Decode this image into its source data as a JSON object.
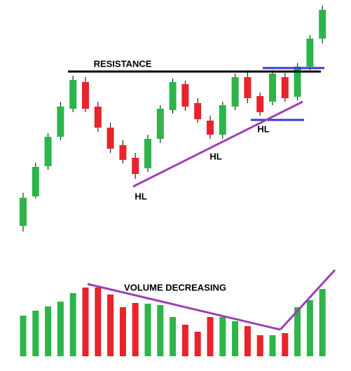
{
  "chart_data": {
    "type": "candlestick",
    "ylim": [
      0,
      530
    ],
    "up_color": "#2db44a",
    "down_color": "#e8232b",
    "open": [
      208,
      250,
      293,
      335,
      375,
      413,
      378,
      348,
      323,
      305,
      290,
      332,
      373,
      410,
      383,
      358,
      338,
      378,
      420,
      393,
      385,
      420,
      392,
      435,
      475
    ],
    "high": [
      255,
      298,
      340,
      385,
      422,
      420,
      385,
      355,
      330,
      312,
      338,
      380,
      418,
      415,
      390,
      365,
      385,
      425,
      427,
      398,
      430,
      426,
      440,
      480,
      522
    ],
    "low": [
      200,
      247,
      288,
      330,
      370,
      370,
      342,
      312,
      297,
      275,
      285,
      326,
      368,
      372,
      355,
      332,
      332,
      373,
      383,
      365,
      380,
      385,
      387,
      430,
      468
    ],
    "close": [
      248,
      292,
      335,
      378,
      416,
      375,
      348,
      318,
      302,
      282,
      332,
      375,
      413,
      378,
      360,
      338,
      380,
      420,
      390,
      370,
      425,
      390,
      435,
      475,
      516
    ],
    "volume_ylim": [
      0,
      120
    ],
    "volume": [
      58,
      65,
      71,
      78,
      90,
      98,
      98,
      88,
      70,
      76,
      75,
      73,
      56,
      45,
      35,
      56,
      56,
      50,
      43,
      30,
      30,
      33,
      70,
      80,
      96
    ],
    "annotations": [
      "RESISTANCE",
      "HL",
      "HL",
      "HL",
      "VOLUME DECREASING"
    ]
  }
}
